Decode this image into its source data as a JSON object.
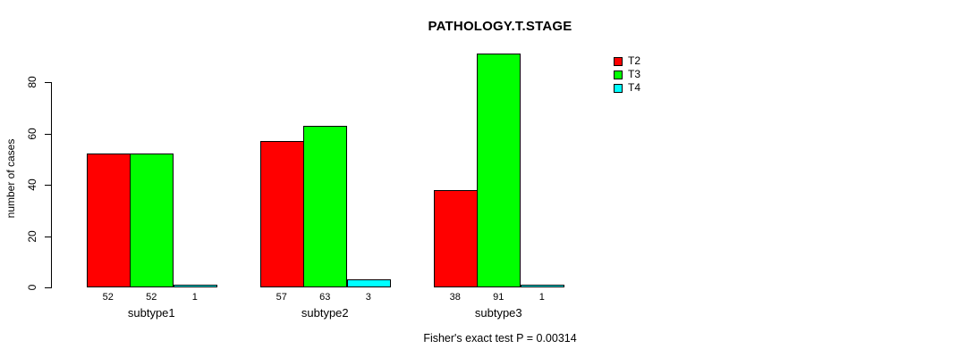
{
  "chart_data": {
    "type": "bar",
    "grouped": true,
    "title": "PATHOLOGY.T.STAGE",
    "xlabel": "",
    "ylabel": "number of cases",
    "categories": [
      "subtype1",
      "subtype2",
      "subtype3"
    ],
    "series": [
      {
        "name": "T2",
        "color": "#ff0000",
        "values": [
          52,
          57,
          38
        ]
      },
      {
        "name": "T3",
        "color": "#00ff00",
        "values": [
          52,
          63,
          91
        ]
      },
      {
        "name": "T4",
        "color": "#00ffff",
        "values": [
          1,
          3,
          1
        ]
      }
    ],
    "y_ticks": [
      0,
      20,
      40,
      60,
      80
    ],
    "ylim": [
      0,
      80
    ],
    "grid": false,
    "bar_borders": true,
    "bar_border_color": "#000000",
    "bar_value_labels_shown": true,
    "legend_position": "top-right",
    "annotation": "Fisher's exact test P = 0.00314",
    "background_color": "#ffffff",
    "text_color": "#000000"
  }
}
